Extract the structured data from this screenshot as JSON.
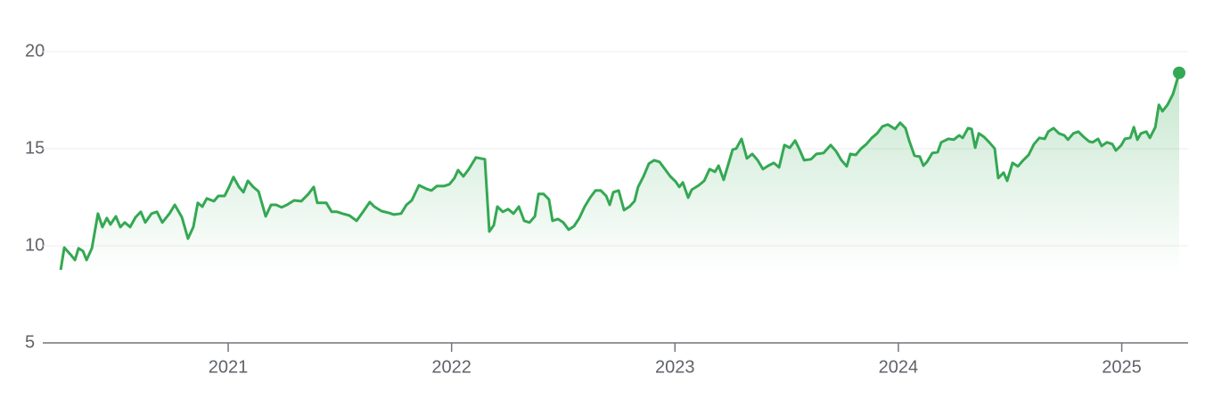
{
  "chart_data": {
    "type": "line",
    "color": "#34a853",
    "grid": true,
    "xlim": [
      2020.17,
      2025.297
    ],
    "xticks": [
      2021,
      2022,
      2023,
      2024,
      2025
    ],
    "ylim": [
      5,
      20
    ],
    "yticks": [
      5,
      10,
      15,
      20
    ],
    "x": [
      2020.25,
      2020.266,
      2020.298,
      2020.314,
      2020.33,
      2020.35,
      2020.366,
      2020.39,
      2020.417,
      2020.437,
      2020.457,
      2020.473,
      2020.497,
      2020.517,
      2020.537,
      2020.561,
      2020.585,
      2020.609,
      2020.629,
      2020.657,
      2020.681,
      2020.705,
      2020.737,
      2020.761,
      2020.793,
      2020.82,
      2020.844,
      2020.864,
      2020.884,
      2020.904,
      2020.936,
      2020.956,
      2020.984,
      2021.004,
      2021.024,
      2021.048,
      2021.068,
      2021.088,
      2021.112,
      2021.136,
      2021.168,
      2021.192,
      2021.215,
      2021.239,
      2021.263,
      2021.295,
      2021.327,
      2021.359,
      2021.383,
      2021.399,
      2021.439,
      2021.463,
      2021.487,
      2021.511,
      2021.543,
      2021.575,
      2021.606,
      2021.634,
      2021.654,
      2021.686,
      2021.718,
      2021.742,
      2021.774,
      2021.798,
      2021.822,
      2021.854,
      2021.886,
      2021.91,
      2021.934,
      2021.966,
      2021.99,
      2022.013,
      2022.029,
      2022.053,
      2022.077,
      2022.109,
      2022.149,
      2022.169,
      2022.189,
      2022.205,
      2022.229,
      2022.253,
      2022.277,
      2022.301,
      2022.325,
      2022.349,
      2022.373,
      2022.389,
      2022.412,
      2022.436,
      2022.452,
      2022.476,
      2022.5,
      2022.524,
      2022.548,
      2022.572,
      2022.596,
      2022.62,
      2022.644,
      2022.668,
      2022.692,
      2022.708,
      2022.724,
      2022.748,
      2022.772,
      2022.796,
      2022.819,
      2022.835,
      2022.859,
      2022.883,
      2022.907,
      2022.931,
      2022.955,
      2022.979,
      2023.003,
      2023.019,
      2023.035,
      2023.059,
      2023.075,
      2023.107,
      2023.131,
      2023.155,
      2023.179,
      2023.195,
      2023.218,
      2023.242,
      2023.258,
      2023.274,
      2023.298,
      2023.322,
      2023.346,
      2023.37,
      2023.394,
      2023.418,
      2023.442,
      2023.466,
      2023.49,
      2023.514,
      2023.538,
      2023.554,
      2023.578,
      2023.609,
      2023.633,
      2023.665,
      2023.697,
      2023.721,
      2023.745,
      2023.769,
      2023.785,
      2023.809,
      2023.833,
      2023.857,
      2023.881,
      2023.905,
      2023.929,
      2023.953,
      2023.985,
      2024.008,
      2024.032,
      2024.048,
      2024.072,
      2024.096,
      2024.112,
      2024.128,
      2024.152,
      2024.176,
      2024.192,
      2024.224,
      2024.248,
      2024.272,
      2024.288,
      2024.312,
      2024.328,
      2024.344,
      2024.36,
      2024.384,
      2024.407,
      2024.431,
      2024.447,
      2024.471,
      2024.487,
      2024.511,
      2024.535,
      2024.559,
      2024.583,
      2024.607,
      2024.631,
      2024.655,
      2024.671,
      2024.695,
      2024.719,
      2024.743,
      2024.759,
      2024.783,
      2024.806,
      2024.83,
      2024.854,
      2024.87,
      2024.894,
      2024.91,
      2024.934,
      2024.958,
      2024.974,
      2024.998,
      2025.014,
      2025.038,
      2025.054,
      2025.07,
      2025.086,
      2025.11,
      2025.126,
      2025.15,
      2025.166,
      2025.182,
      2025.205,
      2025.229,
      2025.257
    ],
    "values": [
      8.76,
      9.91,
      9.5,
      9.27,
      9.87,
      9.73,
      9.27,
      9.87,
      11.66,
      10.97,
      11.43,
      11.1,
      11.52,
      10.97,
      11.2,
      10.97,
      11.47,
      11.75,
      11.2,
      11.66,
      11.75,
      11.2,
      11.66,
      12.11,
      11.47,
      10.37,
      10.97,
      12.21,
      12.02,
      12.44,
      12.3,
      12.57,
      12.57,
      13.03,
      13.54,
      13.03,
      12.76,
      13.35,
      13.03,
      12.8,
      11.52,
      12.11,
      12.11,
      11.98,
      12.11,
      12.34,
      12.3,
      12.67,
      13.03,
      12.21,
      12.21,
      11.75,
      11.75,
      11.66,
      11.56,
      11.29,
      11.79,
      12.25,
      12.02,
      11.79,
      11.7,
      11.61,
      11.66,
      12.11,
      12.34,
      13.12,
      12.94,
      12.85,
      13.08,
      13.08,
      13.17,
      13.49,
      13.9,
      13.58,
      13.95,
      14.55,
      14.46,
      10.74,
      11.06,
      12.02,
      11.75,
      11.89,
      11.66,
      12.02,
      11.29,
      11.2,
      11.52,
      12.67,
      12.67,
      12.39,
      11.29,
      11.38,
      11.2,
      10.83,
      11.01,
      11.43,
      12.02,
      12.48,
      12.85,
      12.85,
      12.57,
      12.11,
      12.76,
      12.85,
      11.84,
      12.02,
      12.3,
      13.03,
      13.58,
      14.23,
      14.41,
      14.32,
      13.95,
      13.58,
      13.31,
      13.03,
      13.26,
      12.48,
      12.89,
      13.12,
      13.35,
      13.95,
      13.81,
      14.13,
      13.4,
      14.32,
      14.96,
      15.01,
      15.51,
      14.5,
      14.73,
      14.41,
      13.95,
      14.13,
      14.27,
      14.04,
      15.19,
      15.05,
      15.42,
      15.05,
      14.41,
      14.46,
      14.73,
      14.78,
      15.19,
      14.87,
      14.41,
      14.09,
      14.73,
      14.68,
      15.01,
      15.24,
      15.56,
      15.79,
      16.15,
      16.25,
      16.02,
      16.34,
      16.06,
      15.42,
      14.64,
      14.59,
      14.13,
      14.32,
      14.78,
      14.82,
      15.33,
      15.51,
      15.47,
      15.69,
      15.56,
      16.06,
      16.02,
      15.05,
      15.79,
      15.6,
      15.33,
      15.01,
      13.49,
      13.77,
      13.35,
      14.27,
      14.09,
      14.41,
      14.68,
      15.24,
      15.56,
      15.51,
      15.88,
      16.06,
      15.79,
      15.69,
      15.47,
      15.79,
      15.88,
      15.6,
      15.37,
      15.33,
      15.51,
      15.14,
      15.33,
      15.24,
      14.91,
      15.19,
      15.51,
      15.56,
      16.11,
      15.47,
      15.79,
      15.88,
      15.56,
      16.11,
      17.26,
      16.93,
      17.26,
      17.81,
      18.91
    ]
  }
}
